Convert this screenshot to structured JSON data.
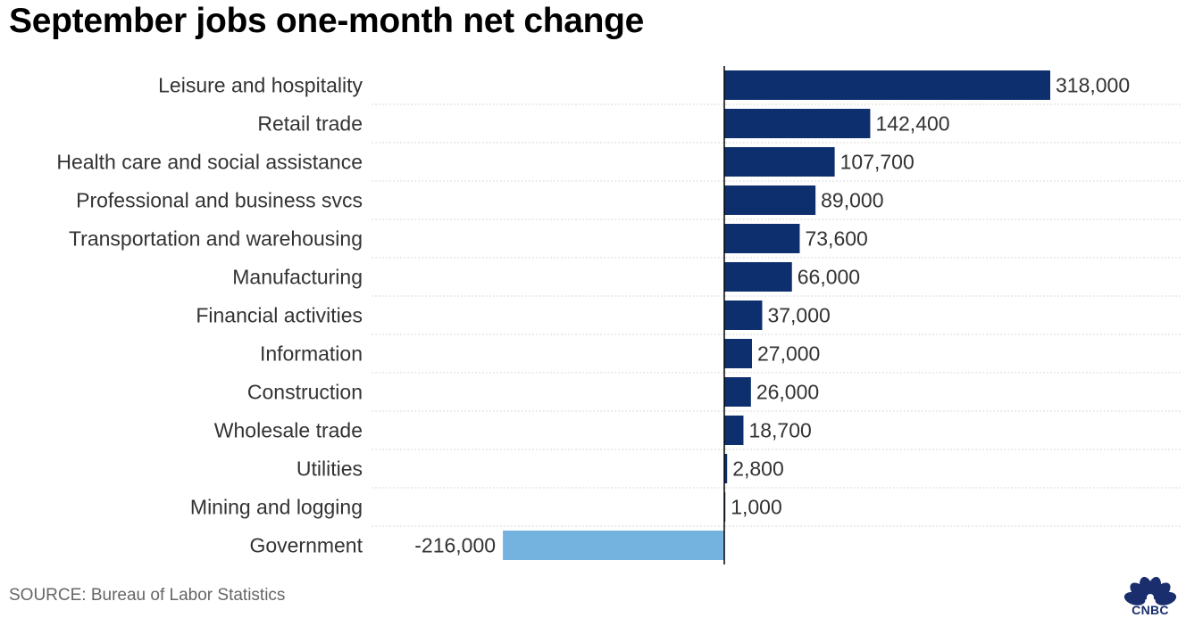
{
  "chart_data": {
    "type": "bar",
    "orientation": "horizontal",
    "title": "September jobs one-month net change",
    "categories": [
      "Leisure and hospitality",
      "Retail trade",
      "Health care and social assistance",
      "Professional and business svcs",
      "Transportation and warehousing",
      "Manufacturing",
      "Financial activities",
      "Information",
      "Construction",
      "Wholesale trade",
      "Utilities",
      "Mining and logging",
      "Government"
    ],
    "values": [
      318000,
      142400,
      107700,
      89000,
      73600,
      66000,
      37000,
      27000,
      26000,
      18700,
      2800,
      1000,
      -216000
    ],
    "data_labels": [
      "318,000",
      "142,400",
      "107,700",
      "89,000",
      "73,600",
      "66,000",
      "37,000",
      "27,000",
      "26,000",
      "18,700",
      "2,800",
      "1,000",
      "-216,000"
    ],
    "xlim": [
      -216000,
      318000
    ],
    "grid": false,
    "colors": {
      "positive": "#0d2f6e",
      "negative": "#74b3e0",
      "zero_line": "#000000",
      "separator": "#d9d9d9"
    },
    "source": "SOURCE: Bureau of Labor Statistics"
  },
  "brand": {
    "logo": "CNBC",
    "logo_icon": "peacock-icon",
    "logo_color": "#1a2e6e"
  }
}
